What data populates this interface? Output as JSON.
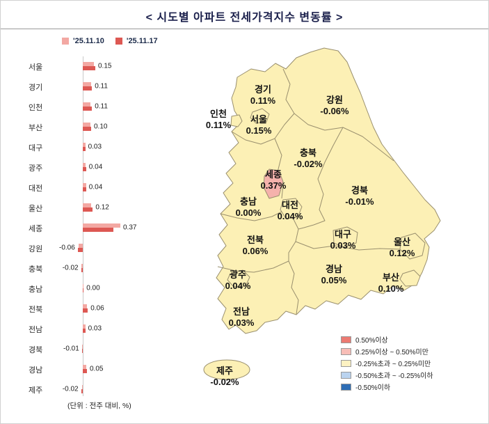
{
  "title": "< 시도별 아파트 전세가격지수 변동률 >",
  "unit_note": "(단위 : 전주 대비, %)",
  "chart_data": {
    "type": "bar",
    "orientation": "horizontal",
    "title": "시도별 아파트 전세가격지수 변동률",
    "categories": [
      "서울",
      "경기",
      "인천",
      "부산",
      "대구",
      "광주",
      "대전",
      "울산",
      "세종",
      "강원",
      "충북",
      "충남",
      "전북",
      "전남",
      "경북",
      "경남",
      "제주"
    ],
    "series": [
      {
        "name": "'25.11.10",
        "color": "#f3a8a3",
        "values": [
          0.13,
          0.1,
          0.09,
          0.09,
          0.03,
          0.03,
          0.04,
          0.1,
          0.45,
          -0.05,
          -0.02,
          0.01,
          0.05,
          0.03,
          -0.01,
          0.04,
          -0.01
        ]
      },
      {
        "name": "'25.11.17",
        "color": "#dd5853",
        "values": [
          0.15,
          0.11,
          0.11,
          0.1,
          0.03,
          0.04,
          0.04,
          0.12,
          0.37,
          -0.06,
          -0.02,
          0.0,
          0.06,
          0.03,
          -0.01,
          0.05,
          -0.02
        ]
      }
    ],
    "value_labels": [
      "0.15",
      "0.11",
      "0.11",
      "0.10",
      "0.03",
      "0.04",
      "0.04",
      "0.12",
      "0.37",
      "-0.06",
      "-0.02",
      "0.00",
      "0.06",
      "0.03",
      "-0.01",
      "0.05",
      "-0.02"
    ],
    "xlim": [
      -0.15,
      0.5
    ],
    "legend_position": "top-left",
    "grid": false,
    "unit_note": "(단위 : 전주 대비, %)"
  },
  "map": {
    "region_fill": "#fcf0b5",
    "highlight_fill": "#f5b2ac",
    "border_color": "#998f6e",
    "regions": [
      {
        "name": "경기",
        "value": "0.11%"
      },
      {
        "name": "강원",
        "value": "-0.06%"
      },
      {
        "name": "인천",
        "value": "0.11%"
      },
      {
        "name": "서울",
        "value": "0.15%"
      },
      {
        "name": "충북",
        "value": "-0.02%"
      },
      {
        "name": "세종",
        "value": "0.37%"
      },
      {
        "name": "경북",
        "value": "-0.01%"
      },
      {
        "name": "충남",
        "value": "0.00%"
      },
      {
        "name": "대전",
        "value": "0.04%"
      },
      {
        "name": "전북",
        "value": "0.06%"
      },
      {
        "name": "대구",
        "value": "0.03%"
      },
      {
        "name": "울산",
        "value": "0.12%"
      },
      {
        "name": "광주",
        "value": "0.04%"
      },
      {
        "name": "경남",
        "value": "0.05%"
      },
      {
        "name": "부산",
        "value": "0.10%"
      },
      {
        "name": "전남",
        "value": "0.03%"
      },
      {
        "name": "제주",
        "value": "-0.02%"
      }
    ]
  },
  "map_legend": [
    {
      "label": "0.50%이상",
      "color": "#ec7a72"
    },
    {
      "label": "0.25%이상 ~ 0.50%미만",
      "color": "#f8bdb7"
    },
    {
      "label": "-0.25%초과 ~ 0.25%미만",
      "color": "#fdf2c2"
    },
    {
      "label": "-0.50%초과 ~ -0.25%이하",
      "color": "#bad3ef"
    },
    {
      "label": "-0.50%이하",
      "color": "#2e6db5"
    }
  ]
}
